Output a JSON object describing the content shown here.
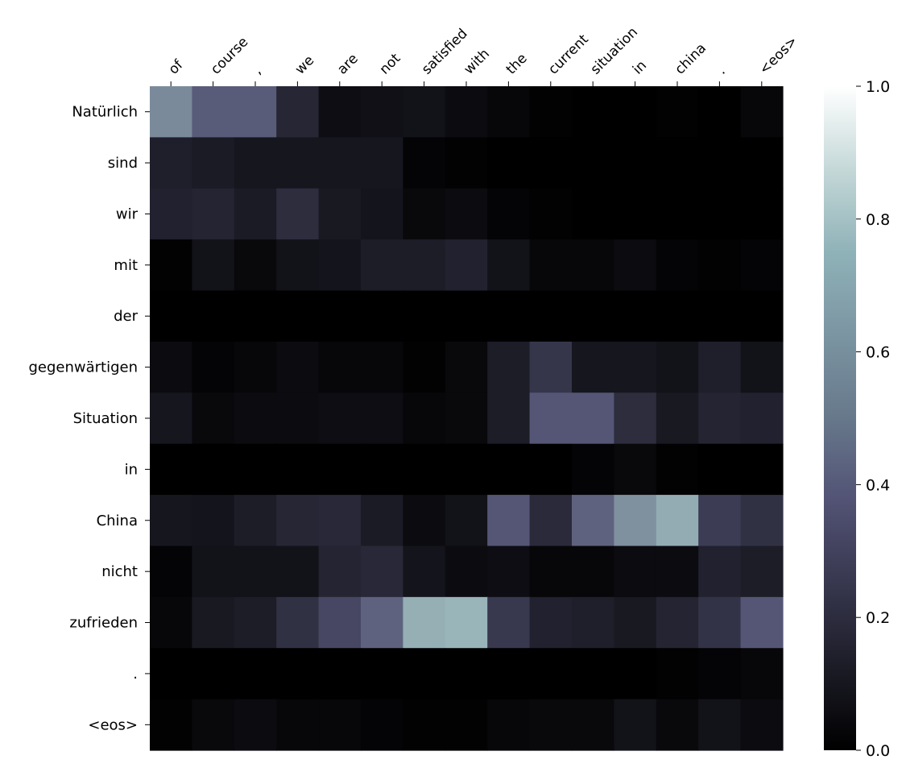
{
  "chart_data": {
    "type": "heatmap",
    "title": "",
    "xlabel": "",
    "ylabel": "",
    "x_labels": [
      "of",
      "course",
      ",",
      "we",
      "are",
      "not",
      "satisfied",
      "with",
      "the",
      "current",
      "situation",
      "in",
      "china",
      ".",
      "<eos>"
    ],
    "y_labels": [
      "Natürlich",
      "sind",
      "wir",
      "mit",
      "der",
      "gegenwärtigen",
      "Situation",
      "in",
      "China",
      "nicht",
      "zufrieden",
      ".",
      "<eos>"
    ],
    "values": [
      [
        0.55,
        0.4,
        0.4,
        0.17,
        0.06,
        0.07,
        0.08,
        0.05,
        0.03,
        0.01,
        0.0,
        0.0,
        0.01,
        0.0,
        0.03
      ],
      [
        0.14,
        0.12,
        0.1,
        0.1,
        0.1,
        0.1,
        0.02,
        0.01,
        0.0,
        0.0,
        0.0,
        0.0,
        0.0,
        0.0,
        0.0
      ],
      [
        0.15,
        0.16,
        0.12,
        0.2,
        0.11,
        0.09,
        0.04,
        0.05,
        0.02,
        0.01,
        0.0,
        0.0,
        0.0,
        0.0,
        0.0
      ],
      [
        0.01,
        0.08,
        0.04,
        0.08,
        0.09,
        0.13,
        0.13,
        0.15,
        0.08,
        0.03,
        0.03,
        0.05,
        0.02,
        0.01,
        0.02
      ],
      [
        0.0,
        0.0,
        0.0,
        0.0,
        0.0,
        0.0,
        0.0,
        0.0,
        0.0,
        0.0,
        0.0,
        0.0,
        0.0,
        0.0,
        0.0
      ],
      [
        0.05,
        0.02,
        0.03,
        0.05,
        0.03,
        0.03,
        0.01,
        0.04,
        0.13,
        0.24,
        0.1,
        0.1,
        0.08,
        0.14,
        0.08
      ],
      [
        0.1,
        0.04,
        0.05,
        0.05,
        0.06,
        0.06,
        0.03,
        0.04,
        0.13,
        0.38,
        0.38,
        0.2,
        0.11,
        0.16,
        0.15
      ],
      [
        0.0,
        0.0,
        0.0,
        0.0,
        0.0,
        0.0,
        0.0,
        0.0,
        0.0,
        0.0,
        0.02,
        0.04,
        0.01,
        0.0,
        0.0
      ],
      [
        0.1,
        0.09,
        0.13,
        0.17,
        0.18,
        0.12,
        0.05,
        0.08,
        0.38,
        0.19,
        0.42,
        0.57,
        0.66,
        0.27,
        0.22
      ],
      [
        0.02,
        0.08,
        0.08,
        0.08,
        0.16,
        0.18,
        0.09,
        0.05,
        0.06,
        0.03,
        0.03,
        0.05,
        0.05,
        0.15,
        0.13
      ],
      [
        0.03,
        0.11,
        0.13,
        0.22,
        0.32,
        0.42,
        0.67,
        0.69,
        0.25,
        0.15,
        0.14,
        0.11,
        0.16,
        0.23,
        0.38
      ],
      [
        0.0,
        0.0,
        0.0,
        0.0,
        0.0,
        0.0,
        0.0,
        0.0,
        0.0,
        0.0,
        0.0,
        0.0,
        0.01,
        0.02,
        0.03
      ],
      [
        0.01,
        0.04,
        0.05,
        0.03,
        0.03,
        0.02,
        0.01,
        0.01,
        0.03,
        0.04,
        0.04,
        0.08,
        0.04,
        0.08,
        0.05
      ]
    ],
    "vmin": 0,
    "vmax": 1,
    "colormap": "bone",
    "colorbar_ticks": [
      "0.0",
      "0.2",
      "0.4",
      "0.6",
      "0.8",
      "1.0"
    ],
    "colorbar_tick_values": [
      0,
      0.2,
      0.4,
      0.6,
      0.8,
      1.0
    ],
    "x_labels_position": "top",
    "x_label_rotation_deg": 45,
    "grid": false,
    "colorbar_position": "right"
  }
}
